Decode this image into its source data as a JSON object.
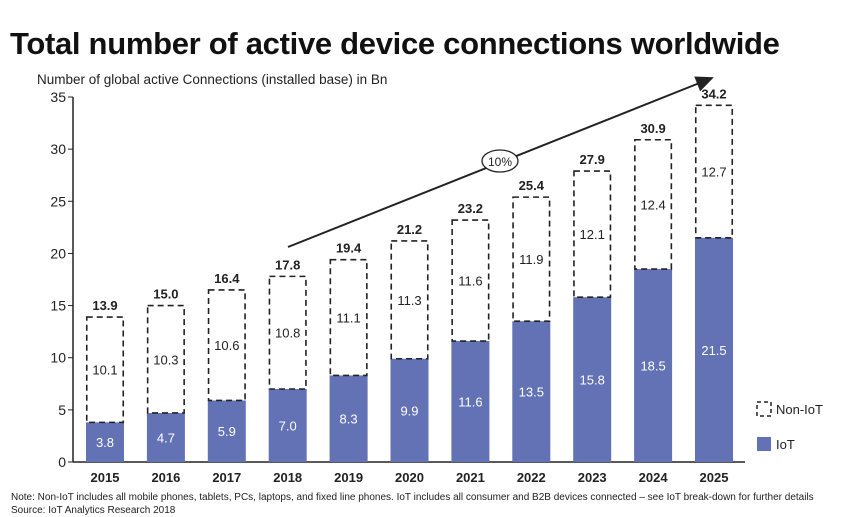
{
  "chart_data": {
    "type": "bar",
    "stacked": true,
    "title": "Total number of active device connections worldwide",
    "ylabel": "Number of global active Connections (installed base) in Bn",
    "xlabel": "",
    "ylim": [
      0,
      35
    ],
    "yticks": [
      0,
      5,
      10,
      15,
      20,
      25,
      30,
      35
    ],
    "grid": false,
    "categories": [
      "2015",
      "2016",
      "2017",
      "2018",
      "2019",
      "2020",
      "2021",
      "2022",
      "2023",
      "2024",
      "2025"
    ],
    "series": [
      {
        "name": "IoT",
        "values": [
          3.8,
          4.7,
          5.9,
          7.0,
          8.3,
          9.9,
          11.6,
          13.5,
          15.8,
          18.5,
          21.5
        ],
        "color": "#6272b5",
        "style": "solid"
      },
      {
        "name": "Non-IoT",
        "values": [
          10.1,
          10.3,
          10.6,
          10.8,
          11.1,
          11.3,
          11.6,
          11.9,
          12.1,
          12.4,
          12.7
        ],
        "color": "#222222",
        "style": "dashed-outline"
      }
    ],
    "totals": [
      "13.9",
      "15.0",
      "16.4",
      "17.8",
      "19.4",
      "21.2",
      "23.2",
      "25.4",
      "27.9",
      "30.9",
      "34.2"
    ],
    "annotation": {
      "label": "10%",
      "type": "growth-arrow",
      "from": "2018",
      "to": "2025"
    },
    "legend": "right"
  },
  "note": "Note: Non-IoT includes all mobile phones, tablets, PCs, laptops, and fixed line phones. IoT includes all consumer and B2B devices connected – see IoT break-down for further details",
  "source": "Source: IoT Analytics Research 2018"
}
